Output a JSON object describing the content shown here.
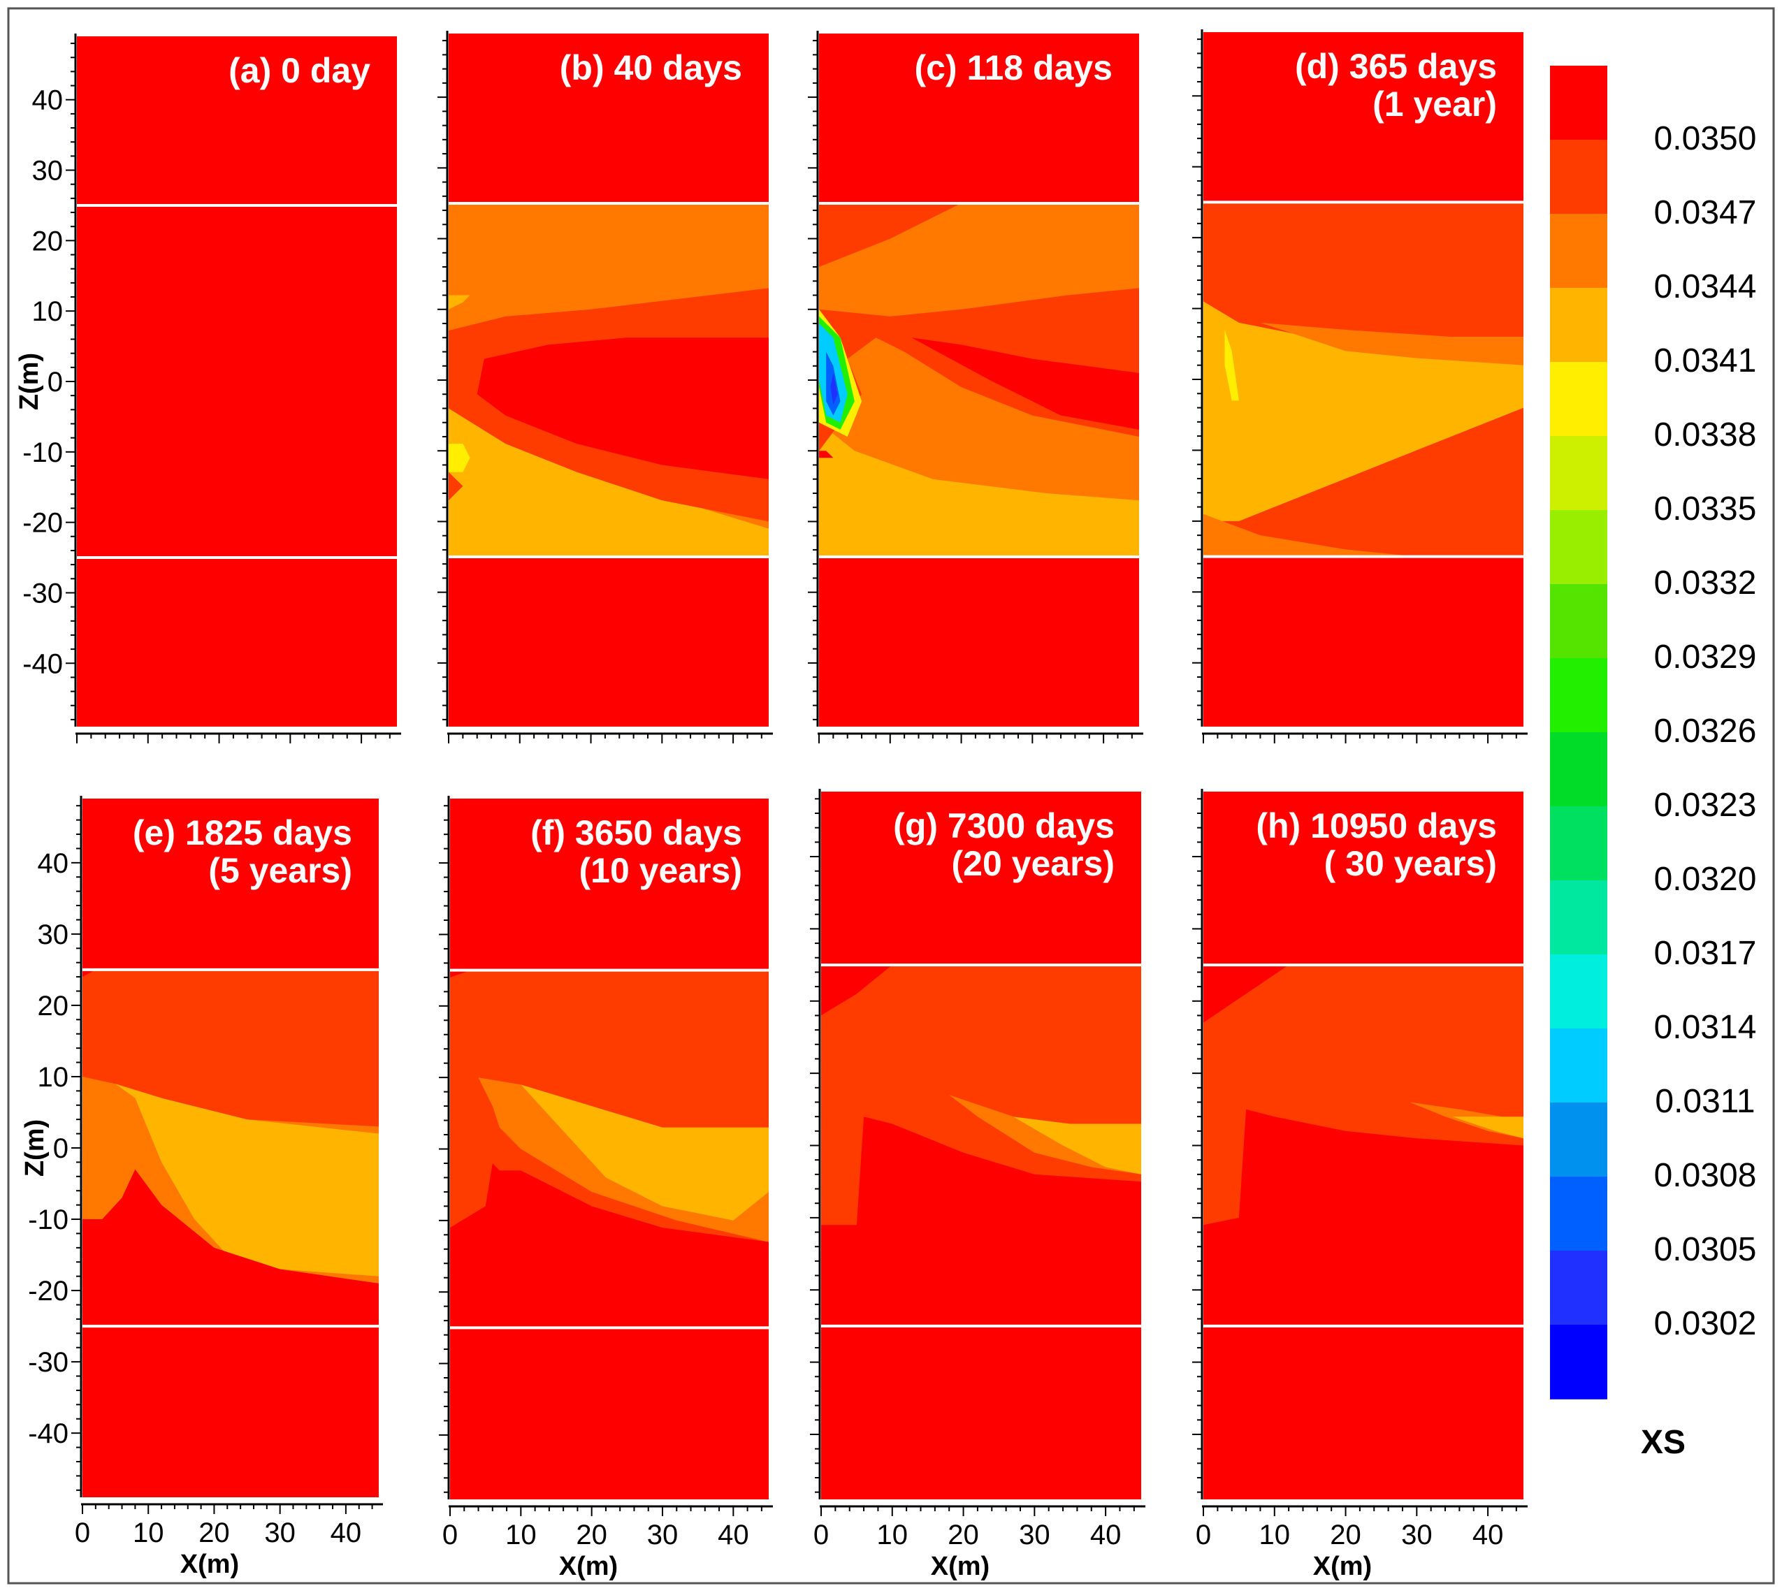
{
  "chart_data": {
    "type": "heatmap",
    "description_panels": 8,
    "x_range": [
      0,
      45
    ],
    "z_range": [
      -49,
      49
    ],
    "x_ticks": [
      0,
      10,
      20,
      30,
      40
    ],
    "z_ticks": [
      40,
      30,
      20,
      10,
      0,
      -10,
      -20,
      -30,
      -40
    ],
    "xlabel": "X(m)",
    "ylabel": "Z(m)",
    "layer_bounds": [
      25,
      -25
    ],
    "colorbar": {
      "title": "XS",
      "levels": [
        "0.0350",
        "0.0347",
        "0.0344",
        "0.0341",
        "0.0338",
        "0.0335",
        "0.0332",
        "0.0329",
        "0.0326",
        "0.0323",
        "0.0320",
        "0.0317",
        "0.0314",
        "0.0311",
        "0.0308",
        "0.0305",
        "0.0302"
      ],
      "colors": [
        "#ff0000",
        "#ff3c00",
        "#ff7800",
        "#ffb400",
        "#ffee00",
        "#ccf000",
        "#99ee00",
        "#55e400",
        "#22ee00",
        "#00dc28",
        "#00e060",
        "#00e8a0",
        "#00eedd",
        "#00ccff",
        "#0090ee",
        "#0060ff",
        "#2030ff",
        "#0000ff"
      ]
    },
    "panels": [
      {
        "id": "a",
        "title_line1": "(a) 0 day",
        "title_line2": "",
        "show_ylabel": true,
        "show_xlabel": false,
        "time_days": 0
      },
      {
        "id": "b",
        "title_line1": "(b) 40 days",
        "title_line2": "",
        "show_ylabel": false,
        "show_xlabel": false,
        "time_days": 40
      },
      {
        "id": "c",
        "title_line1": "(c) 118 days",
        "title_line2": "",
        "show_ylabel": false,
        "show_xlabel": false,
        "time_days": 118
      },
      {
        "id": "d",
        "title_line1": "(d) 365 days",
        "title_line2": "(1 year)",
        "show_ylabel": false,
        "show_xlabel": false,
        "time_days": 365
      },
      {
        "id": "e",
        "title_line1": "(e) 1825 days",
        "title_line2": "(5 years)",
        "show_ylabel": true,
        "show_xlabel": true,
        "time_days": 1825
      },
      {
        "id": "f",
        "title_line1": "(f) 3650 days",
        "title_line2": "(10 years)",
        "show_ylabel": false,
        "show_xlabel": true,
        "time_days": 3650
      },
      {
        "id": "g",
        "title_line1": "(g) 7300 days",
        "title_line2": "(20 years)",
        "show_ylabel": false,
        "show_xlabel": true,
        "time_days": 7300
      },
      {
        "id": "h",
        "title_line1": "(h) 10950 days",
        "title_line2": "( 30 years)",
        "show_ylabel": false,
        "show_xlabel": true,
        "time_days": 10950
      }
    ]
  }
}
